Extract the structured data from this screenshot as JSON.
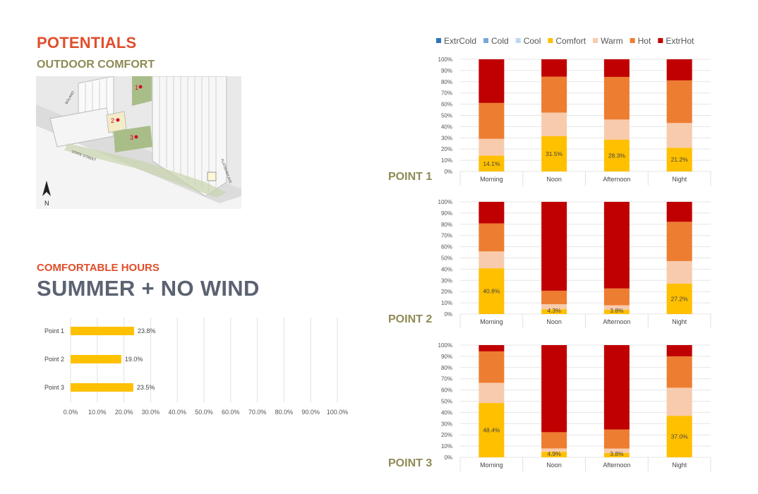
{
  "header": {
    "title": "POTENTIALS",
    "subtitle": "OUTDOOR COMFORT",
    "hours_label": "COMFORTABLE HOURS",
    "season_title": "SUMMER + NO WIND"
  },
  "site_map": {
    "north_label": "N",
    "point_markers": [
      "1",
      "2",
      "3"
    ],
    "street_labels": [
      "STATE STREET",
      "FLATBUSH AVE",
      "BOLAND"
    ],
    "colors": {
      "green": "#a9bd88",
      "building": "#f1f1f1",
      "marker": "#d0102a"
    }
  },
  "legend": [
    {
      "label": "ExtrCold",
      "color": "#2e75b6"
    },
    {
      "label": "Cold",
      "color": "#7aa7d6"
    },
    {
      "label": "Cool",
      "color": "#bdd7ee"
    },
    {
      "label": "Comfort",
      "color": "#ffc000"
    },
    {
      "label": "Warm",
      "color": "#f8cbad"
    },
    {
      "label": "Hot",
      "color": "#ed7d31"
    },
    {
      "label": "ExtrHot",
      "color": "#c00000"
    }
  ],
  "point_labels": [
    "POINT 1",
    "POINT 2",
    "POINT 3"
  ],
  "chart_data": [
    {
      "type": "bar",
      "orientation": "horizontal",
      "title": "",
      "categories": [
        "Point 1",
        "Point 2",
        "Point 3"
      ],
      "values": [
        23.8,
        19.0,
        23.5
      ],
      "value_labels": [
        "23.8%",
        "19.0%",
        "23.5%"
      ],
      "xlim": [
        0,
        100
      ],
      "x_ticks": [
        "0.0%",
        "10.0%",
        "20.0%",
        "30.0%",
        "40.0%",
        "50.0%",
        "60.0%",
        "70.0%",
        "80.0%",
        "90.0%",
        "100.0%"
      ],
      "grid": true,
      "color": "#ffc000"
    },
    {
      "type": "bar",
      "stacked": true,
      "title": "POINT 1",
      "categories": [
        "Morning",
        "Noon",
        "Afternoon",
        "Night"
      ],
      "series": [
        {
          "name": "Comfort",
          "values": [
            14.1,
            31.5,
            28.3,
            21.2
          ]
        },
        {
          "name": "Warm",
          "values": [
            15,
            21,
            18,
            22
          ]
        },
        {
          "name": "Hot",
          "values": [
            32,
            32,
            38,
            38
          ]
        },
        {
          "name": "ExtrHot",
          "values": [
            38.9,
            15.5,
            15.7,
            18.8
          ]
        }
      ],
      "comfort_labels": [
        "14.1%",
        "31.5%",
        "28.3%",
        "21.2%"
      ],
      "ylim": [
        0,
        100
      ],
      "y_ticks": [
        "0%",
        "10%",
        "20%",
        "30%",
        "40%",
        "50%",
        "60%",
        "70%",
        "80%",
        "90%",
        "100%"
      ],
      "grid": true
    },
    {
      "type": "bar",
      "stacked": true,
      "title": "POINT 2",
      "categories": [
        "Morning",
        "Noon",
        "Afternoon",
        "Night"
      ],
      "series": [
        {
          "name": "Comfort",
          "values": [
            40.8,
            4.3,
            3.8,
            27.2
          ]
        },
        {
          "name": "Warm",
          "values": [
            15,
            4.5,
            4,
            20
          ]
        },
        {
          "name": "Hot",
          "values": [
            25,
            12,
            15,
            35
          ]
        },
        {
          "name": "ExtrHot",
          "values": [
            19.2,
            79.2,
            77.2,
            17.8
          ]
        }
      ],
      "comfort_labels": [
        "40.8%",
        "4.3%",
        "3.8%",
        "27.2%"
      ],
      "ylim": [
        0,
        100
      ],
      "y_ticks": [
        "0%",
        "10%",
        "20%",
        "30%",
        "40%",
        "50%",
        "60%",
        "70%",
        "80%",
        "90%",
        "100%"
      ],
      "grid": true
    },
    {
      "type": "bar",
      "stacked": true,
      "title": "POINT 3",
      "categories": [
        "Morning",
        "Noon",
        "Afternoon",
        "Night"
      ],
      "series": [
        {
          "name": "Comfort",
          "values": [
            48.4,
            4.9,
            3.8,
            37.0
          ]
        },
        {
          "name": "Warm",
          "values": [
            18,
            3,
            4,
            25
          ]
        },
        {
          "name": "Hot",
          "values": [
            28,
            14.5,
            17,
            28
          ]
        },
        {
          "name": "ExtrHot",
          "values": [
            5.6,
            77.6,
            75.2,
            10
          ]
        }
      ],
      "comfort_labels": [
        "48.4%",
        "4.9%",
        "3.8%",
        "37.0%"
      ],
      "ylim": [
        0,
        100
      ],
      "y_ticks": [
        "0%",
        "10%",
        "20%",
        "30%",
        "40%",
        "50%",
        "60%",
        "70%",
        "80%",
        "90%",
        "100%"
      ],
      "grid": true
    }
  ]
}
